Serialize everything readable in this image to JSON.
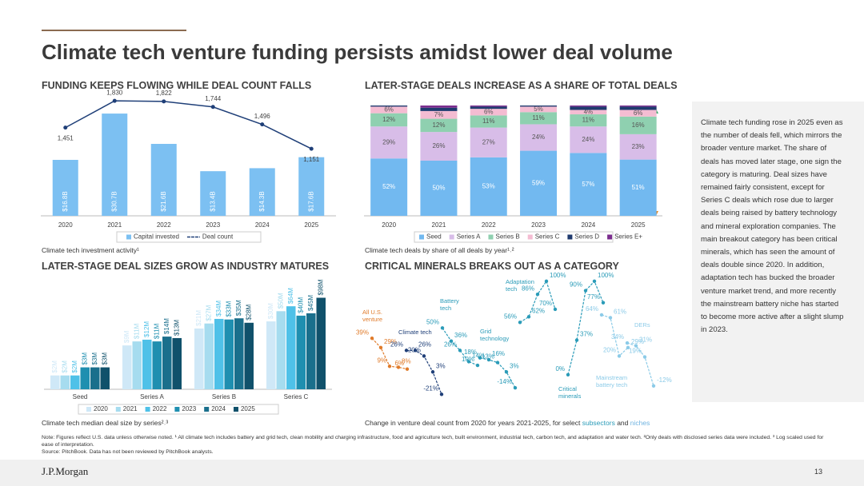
{
  "title": "Climate tech venture funding persists amidst lower deal volume",
  "chart_data": [
    {
      "type": "combo",
      "title": "FUNDING KEEPS FLOWING WHILE DEAL COUNT FALLS",
      "caption": "Climate tech investment activity¹",
      "categories": [
        "2020",
        "2021",
        "2022",
        "2023",
        "2024",
        "2025"
      ],
      "ylim": [
        0,
        36
      ],
      "y2lim": [
        200,
        1900
      ],
      "series": [
        {
          "name": "Capital invested",
          "type": "bar",
          "color": "#7cc0f2",
          "values": [
            16.8,
            30.7,
            21.6,
            13.4,
            14.3,
            17.6
          ],
          "value_labels": [
            "$16.8B",
            "$30.7B",
            "$21.6B",
            "$13.4B",
            "$14.3B",
            "$17.6B"
          ]
        },
        {
          "name": "Deal count",
          "type": "line",
          "axis": "y2",
          "color": "#1f3f78",
          "values": [
            1451,
            1830,
            1822,
            1744,
            1496,
            1151
          ],
          "value_labels": [
            "1,451",
            "1,830",
            "1,822",
            "1,744",
            "1,496",
            "1,151"
          ]
        }
      ]
    },
    {
      "type": "stacked",
      "title": "LATER-STAGE DEALS INCREASE AS A SHARE OF TOTAL DEALS",
      "caption": "Climate tech deals by share of all deals by year¹˒²",
      "categories": [
        "2020",
        "2021",
        "2022",
        "2023",
        "2024",
        "2025"
      ],
      "ylim": [
        0,
        100
      ],
      "series": [
        {
          "name": "Seed",
          "color": "#72b9f0",
          "values": [
            52,
            50,
            53,
            59,
            57,
            51
          ],
          "value_labels": [
            "52%",
            "50%",
            "53%",
            "59%",
            "57%",
            "51%"
          ]
        },
        {
          "name": "Series A",
          "color": "#d8bde8",
          "values": [
            29,
            26,
            27,
            24,
            24,
            23
          ],
          "value_labels": [
            "29%",
            "26%",
            "27%",
            "24%",
            "24%",
            "23%"
          ]
        },
        {
          "name": "Series B",
          "color": "#8fd0b0",
          "values": [
            12,
            12,
            11,
            11,
            11,
            16
          ],
          "value_labels": [
            "12%",
            "12%",
            "11%",
            "11%",
            "11%",
            "16%"
          ]
        },
        {
          "name": "Series C",
          "color": "#f4bcd2",
          "values": [
            6,
            7,
            6,
            5,
            4,
            6
          ],
          "value_labels": [
            "6%",
            "7%",
            "6%",
            "5%",
            "4%",
            "6%"
          ]
        },
        {
          "name": "Series D",
          "color": "#1f3a6e",
          "values": [
            1,
            3,
            2,
            1,
            3,
            3
          ]
        },
        {
          "name": "Series E+",
          "color": "#7b2d8e",
          "values": [
            0,
            2,
            1,
            0,
            1,
            1
          ]
        }
      ]
    },
    {
      "type": "grouped",
      "title": "LATER-STAGE DEAL SIZES GROW AS INDUSTRY MATURES",
      "caption": "Climate tech median deal size by series²˒³",
      "categories": [
        "Seed",
        "Series A",
        "Series B",
        "Series C"
      ],
      "log_scale": true,
      "ylim": [
        1,
        100
      ],
      "series": [
        {
          "name": "2020",
          "color": "#cfe8f7",
          "values": [
            2,
            9,
            21,
            30
          ],
          "value_labels": [
            "$2M",
            "$9M",
            "$21M",
            "$30M"
          ]
        },
        {
          "name": "2021",
          "color": "#a6dcef",
          "values": [
            2,
            11,
            27,
            50
          ],
          "value_labels": [
            "$2M",
            "$11M",
            "$27M",
            "$50M"
          ]
        },
        {
          "name": "2022",
          "color": "#4fc1e8",
          "values": [
            2,
            12,
            34,
            64
          ],
          "value_labels": [
            "$2M",
            "$12M",
            "$34M",
            "$64M"
          ]
        },
        {
          "name": "2023",
          "color": "#1f8fb0",
          "values": [
            3,
            11,
            33,
            40
          ],
          "value_labels": [
            "$3M",
            "$11M",
            "$33M",
            "$40M"
          ]
        },
        {
          "name": "2024",
          "color": "#1a6f8c",
          "values": [
            3,
            14,
            35,
            45
          ],
          "value_labels": [
            "$3M",
            "$14M",
            "$35M",
            "$45M"
          ]
        },
        {
          "name": "2025",
          "color": "#10516b",
          "values": [
            3,
            13,
            28,
            98
          ],
          "value_labels": [
            "$3M",
            "$13M",
            "$28M",
            "$98M"
          ]
        }
      ]
    },
    {
      "type": "line",
      "title": "CRITICAL MINERALS BREAKS OUT AS A CATEGORY",
      "caption_parts": [
        "Change in venture deal count from 2020 for years 2021-2025, for select",
        "subsectors",
        "and",
        "niches"
      ],
      "ylim": [
        -25,
        105
      ],
      "series": [
        {
          "name": "All U.S. venture",
          "color": "#e07b2a",
          "values": [
            39,
            29,
            9,
            8,
            6
          ],
          "value_labels": [
            "39%",
            "29%",
            "9%",
            "8%",
            "6%"
          ]
        },
        {
          "name": "Climate tech",
          "color": "#1f3f78",
          "values": [
            26,
            26,
            20,
            3,
            -21
          ],
          "value_labels": [
            "26%",
            "26%",
            "20%",
            "3%",
            "-21%"
          ]
        },
        {
          "name": "Battery tech",
          "color": "#2a9bb8",
          "values": [
            50,
            36,
            26,
            14,
            10
          ],
          "value_labels": [
            "50%",
            "36%",
            "26%",
            "14%",
            "10%"
          ]
        },
        {
          "name": "Grid technology",
          "color": "#2a9bb8",
          "values": [
            18,
            16,
            13,
            3,
            -14
          ],
          "value_labels": [
            "18%",
            "16%",
            "13%",
            "3%",
            "-14%"
          ]
        },
        {
          "name": "Adaptation tech",
          "color": "#2a9bb8",
          "values": [
            56,
            62,
            86,
            100,
            70
          ],
          "value_labels": [
            "56%",
            "62%",
            "86%",
            "100%",
            "70%"
          ]
        },
        {
          "name": "Critical minerals",
          "color": "#2a9bb8",
          "values": [
            0,
            37,
            90,
            100,
            77
          ],
          "value_labels": [
            "0%",
            "37%",
            "90%",
            "100%",
            "77%"
          ]
        },
        {
          "name": "Mainstream battery tech",
          "color": "#8ccbe8",
          "values": [
            64,
            61,
            20,
            29
          ],
          "value_labels": [
            "64%",
            "61%",
            "20%",
            "29%"
          ]
        },
        {
          "name": "DERs",
          "color": "#8ccbe8",
          "values": [
            34,
            31,
            19,
            -12
          ],
          "value_labels": [
            "34%",
            "31%",
            "19%",
            "-12%"
          ]
        }
      ]
    }
  ],
  "sidebar": "Climate tech funding rose in 2025 even as the number of deals fell, which mirrors the broader venture market. The share of deals has moved later stage, one sign the category is maturing. Deal sizes have remained fairly consistent, except for Series C deals which rose due to larger deals being raised by battery technology and mineral exploration companies. The main breakout category has been critical minerals, which has seen the amount of deals double since 2020. In addition, adaptation tech has bucked the broader venture market trend, and more recently the mainstream battery niche has started to become more active after a slight slump in 2023.",
  "note": "Note: Figures reflect U.S. data unless otherwise noted. ¹ All climate tech includes battery and grid tech, clean mobility and charging infrastructure, food and agriculture tech, built environment, industrial tech, carbon tech, and adaptation and water tech. ²Only deals with disclosed series data were included. ³ Log scaled used for ease of interpretation.",
  "source": "Source: PitchBook. Data has not been reviewed by PitchBook analysts.",
  "footer": {
    "logo": "J.P.Morgan",
    "page": "13"
  }
}
